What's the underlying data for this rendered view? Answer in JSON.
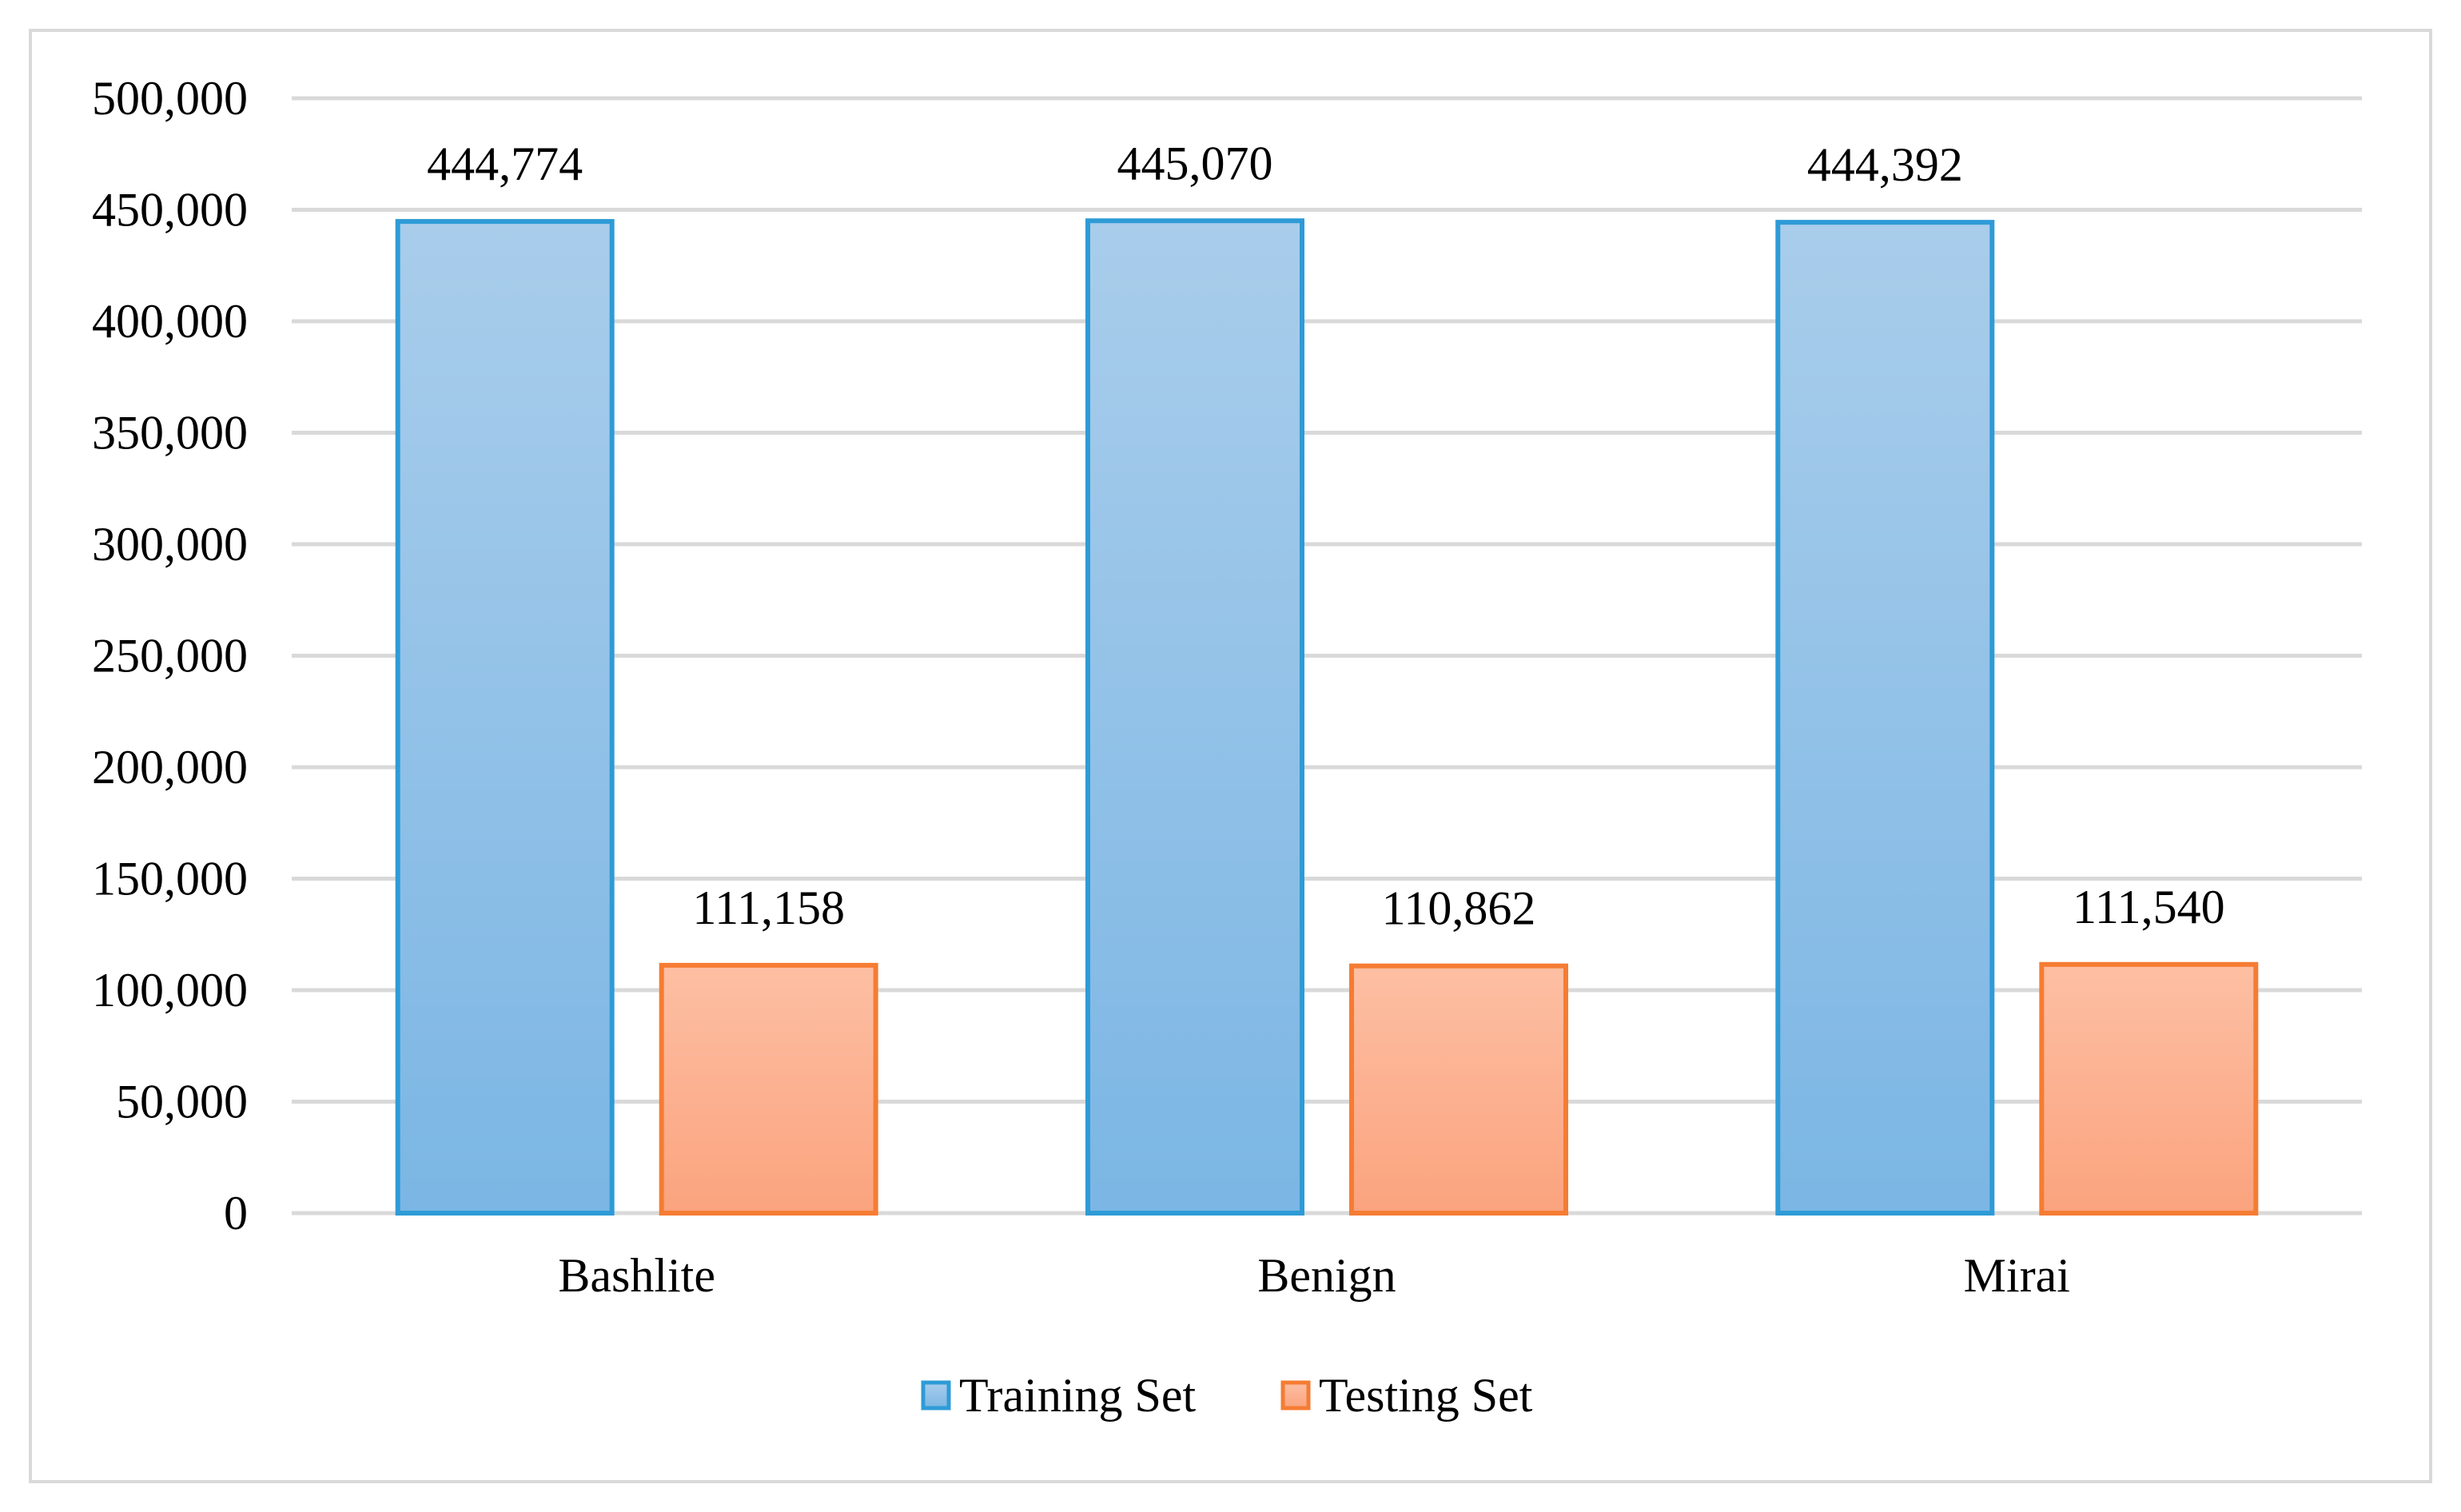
{
  "chart_data": {
    "type": "bar",
    "title": "",
    "xlabel": "",
    "ylabel": "",
    "categories": [
      "Bashlite",
      "Benign",
      "Mirai"
    ],
    "series": [
      {
        "name": "Training Set",
        "values": [
          444774,
          445070,
          444392
        ],
        "labels": [
          "444,774",
          "445,070",
          "444,392"
        ],
        "color": "#2E9BD6"
      },
      {
        "name": "Testing Set",
        "values": [
          111158,
          110862,
          111540
        ],
        "labels": [
          "111,158",
          "110,862",
          "111,540"
        ],
        "color": "#F57C33"
      }
    ],
    "ylim": [
      0,
      500000
    ],
    "yticks": [
      0,
      50000,
      100000,
      150000,
      200000,
      250000,
      300000,
      350000,
      400000,
      450000,
      500000
    ],
    "ytick_labels": [
      "0",
      "50,000",
      "100,000",
      "150,000",
      "200,000",
      "250,000",
      "300,000",
      "350,000",
      "400,000",
      "450,000",
      "500,000"
    ],
    "grid": true,
    "legend_position": "bottom-center"
  }
}
